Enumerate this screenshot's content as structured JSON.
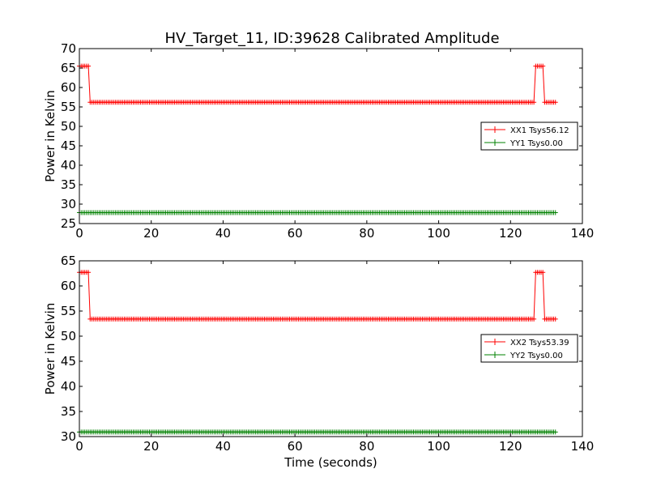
{
  "figure": {
    "title": "HV_Target_11, ID:39628 Calibrated Amplitude"
  },
  "chart_data": [
    {
      "type": "line",
      "title": "HV_Target_11, ID:39628 Calibrated Amplitude",
      "xlabel": "",
      "ylabel": "Power in Kelvin",
      "xlim": [
        0,
        140
      ],
      "ylim": [
        25,
        70
      ],
      "xticks": [
        "0",
        "20",
        "40",
        "60",
        "80",
        "100",
        "120",
        "140"
      ],
      "yticks": [
        "25",
        "30",
        "35",
        "40",
        "45",
        "50",
        "55",
        "60",
        "65",
        "70"
      ],
      "grid": false,
      "legend_position": "center-right",
      "series": [
        {
          "name": "XX1 Tsys56.12",
          "color": "#ff0000",
          "marker": "plus",
          "x_start": 0,
          "x_end": 132.5,
          "x_step": 0.5,
          "segments": [
            {
              "from": 0,
              "to": 2.5,
              "value": 65.5
            },
            {
              "from": 3,
              "to": 126.5,
              "value": 56.2
            },
            {
              "from": 127,
              "to": 129,
              "value": 65.5
            },
            {
              "from": 129.5,
              "to": 132.5,
              "value": 56.2
            }
          ]
        },
        {
          "name": "YY1 Tsys0.00",
          "color": "#008000",
          "marker": "plus",
          "x_start": 0,
          "x_end": 132.5,
          "x_step": 0.5,
          "segments": [
            {
              "from": 0,
              "to": 132.5,
              "value": 27.8
            }
          ]
        }
      ]
    },
    {
      "type": "line",
      "title": "",
      "xlabel": "Time (seconds)",
      "ylabel": "Power in Kelvin",
      "xlim": [
        0,
        140
      ],
      "ylim": [
        30,
        65
      ],
      "xticks": [
        "0",
        "20",
        "40",
        "60",
        "80",
        "100",
        "120",
        "140"
      ],
      "yticks": [
        "30",
        "35",
        "40",
        "45",
        "50",
        "55",
        "60",
        "65"
      ],
      "grid": false,
      "legend_position": "center-right",
      "series": [
        {
          "name": "XX2 Tsys53.39",
          "color": "#ff0000",
          "marker": "plus",
          "x_start": 0,
          "x_end": 132.5,
          "x_step": 0.5,
          "segments": [
            {
              "from": 0,
              "to": 2.5,
              "value": 62.7
            },
            {
              "from": 3,
              "to": 126.5,
              "value": 53.4
            },
            {
              "from": 127,
              "to": 129,
              "value": 62.7
            },
            {
              "from": 129.5,
              "to": 132.5,
              "value": 53.4
            }
          ]
        },
        {
          "name": "YY2 Tsys0.00",
          "color": "#008000",
          "marker": "plus",
          "x_start": 0,
          "x_end": 132.5,
          "x_step": 0.5,
          "segments": [
            {
              "from": 0,
              "to": 132.5,
              "value": 30.9
            }
          ]
        }
      ]
    }
  ]
}
